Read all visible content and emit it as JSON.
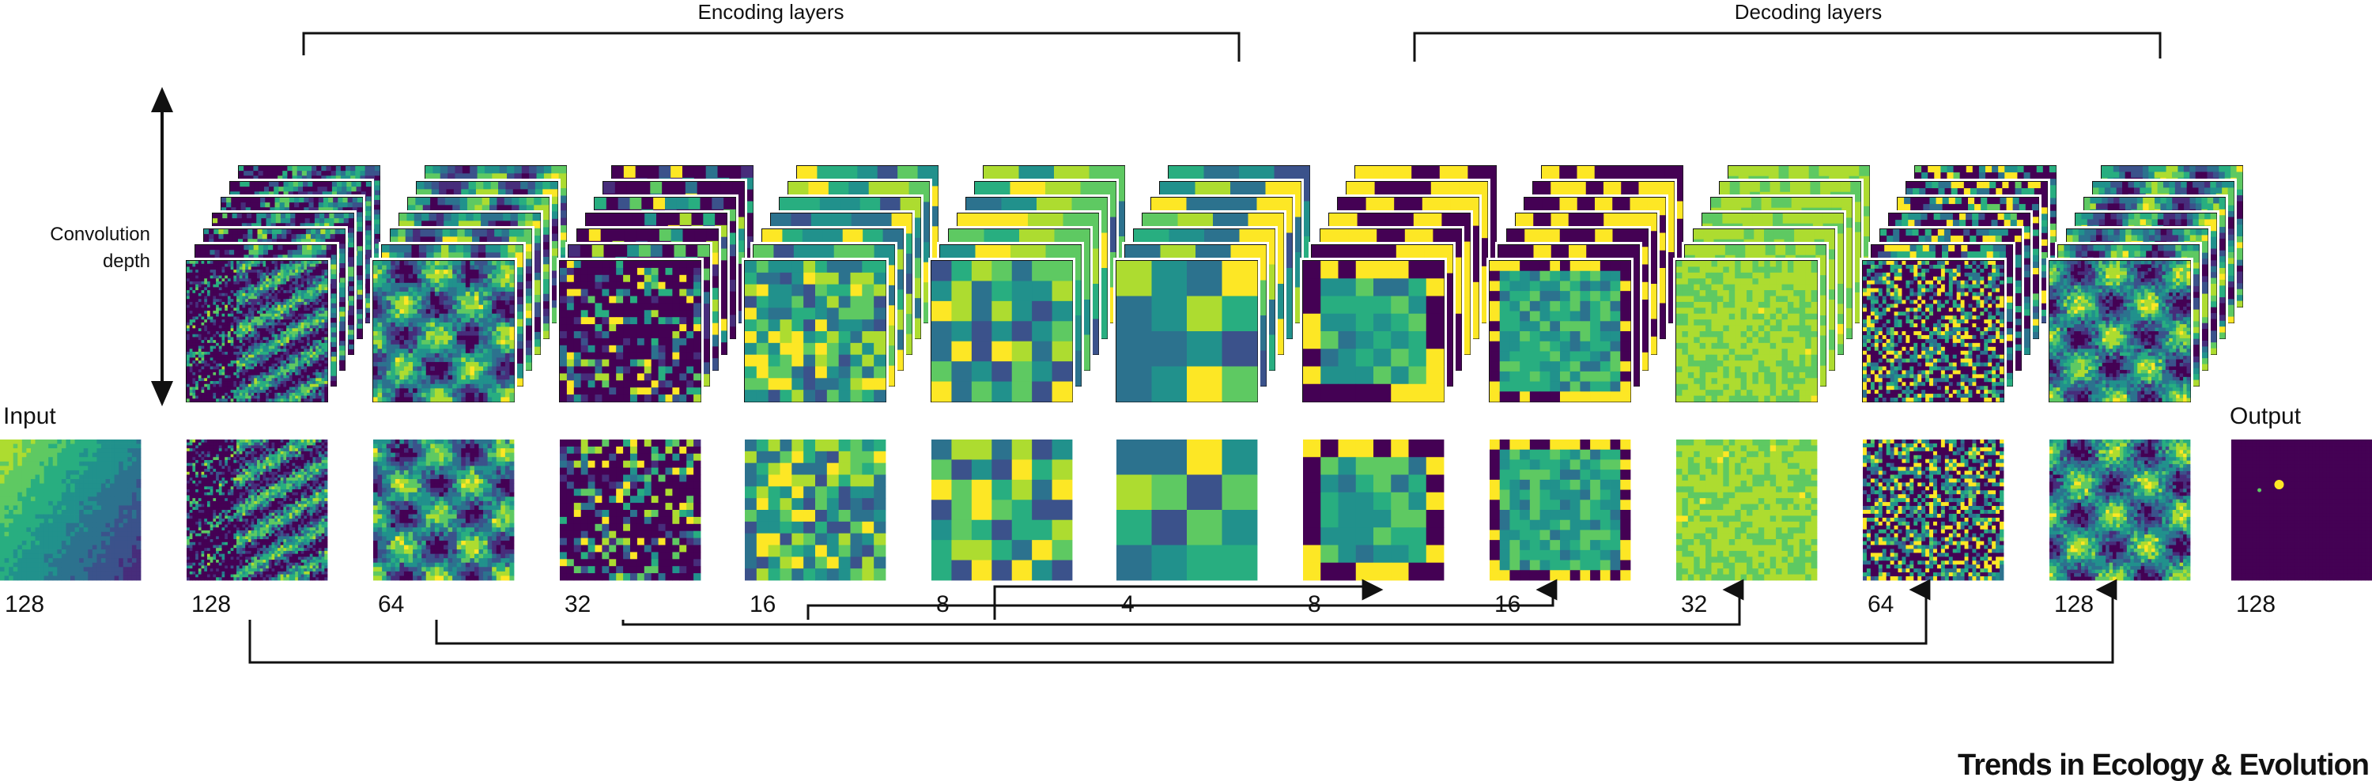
{
  "header": {
    "encoding_label": "Encoding layers",
    "decoding_label": "Decoding layers"
  },
  "axis": {
    "depth_label_line1": "Convolution",
    "depth_label_line2": "depth"
  },
  "io": {
    "input_label": "Input",
    "output_label": "Output"
  },
  "layers": [
    {
      "id": "input",
      "size": "128",
      "grid": 32,
      "style": "gradient",
      "seed": 1
    },
    {
      "id": "enc1",
      "size": "128",
      "grid": 48,
      "style": "waves",
      "seed": 2
    },
    {
      "id": "enc2",
      "size": "64",
      "grid": 32,
      "style": "blobs",
      "seed": 3
    },
    {
      "id": "enc3",
      "size": "32",
      "grid": 20,
      "style": "noise",
      "seed": 4
    },
    {
      "id": "enc4",
      "size": "16",
      "grid": 12,
      "style": "mid",
      "seed": 5
    },
    {
      "id": "enc5",
      "size": "8",
      "grid": 7,
      "style": "mid",
      "seed": 6
    },
    {
      "id": "bottle",
      "size": "4",
      "grid": 4,
      "style": "mid",
      "seed": 7
    },
    {
      "id": "dec1",
      "size": "8",
      "grid": 8,
      "style": "frame",
      "seed": 8
    },
    {
      "id": "dec2",
      "size": "16",
      "grid": 14,
      "style": "frame",
      "seed": 9
    },
    {
      "id": "dec3",
      "size": "32",
      "grid": 24,
      "style": "smooth",
      "seed": 10
    },
    {
      "id": "dec4",
      "size": "64",
      "grid": 36,
      "style": "spots",
      "seed": 11
    },
    {
      "id": "dec5",
      "size": "128",
      "grid": 40,
      "style": "blobs",
      "seed": 12
    },
    {
      "id": "output",
      "size": "128",
      "grid": 40,
      "style": "dark",
      "seed": 13
    }
  ],
  "skip_connections": [
    {
      "from": "enc1",
      "to": "dec5"
    },
    {
      "from": "enc2",
      "to": "dec4"
    },
    {
      "from": "enc3",
      "to": "dec3"
    },
    {
      "from": "enc4",
      "to": "dec2"
    },
    {
      "from": "enc5",
      "to": "dec1"
    }
  ],
  "journal": "Trends in Ecology & Evolution",
  "colors": {
    "viridis_dark": "#440154",
    "viridis_blue": "#3b528b",
    "viridis_teal": "#21918c",
    "viridis_green": "#5ec962",
    "viridis_yellow": "#fde725",
    "line": "#111111"
  }
}
